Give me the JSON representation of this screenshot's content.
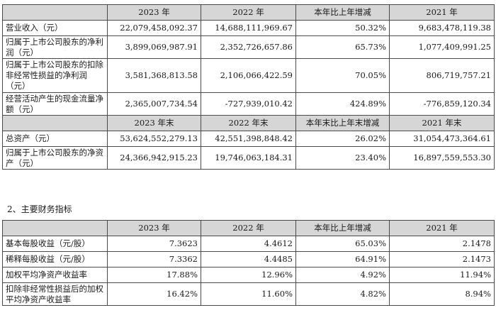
{
  "table1": {
    "header": [
      "",
      "2023 年",
      "2022 年",
      "本年比上年增减",
      "2021 年"
    ],
    "rows": [
      {
        "label": "营业收入（元）",
        "values": [
          "22,079,458,092.37",
          "14,688,111,969.67",
          "50.32%",
          "9,683,478,119.38"
        ]
      },
      {
        "label": "归属于上市公司股东的净利润（元）",
        "values": [
          "3,899,069,987.91",
          "2,352,726,657.86",
          "65.73%",
          "1,077,409,991.25"
        ]
      },
      {
        "label": "归属于上市公司股东的扣除非经常性损益的净利润（元）",
        "values": [
          "3,581,368,813.58",
          "2,106,066,422.59",
          "70.05%",
          "806,719,757.21"
        ]
      },
      {
        "label": "经营活动产生的现金流量净额（元）",
        "values": [
          "2,365,007,734.54",
          "-727,939,010.42",
          "424.89%",
          "-776,859,120.34"
        ]
      }
    ],
    "subheader": [
      "",
      "2023 年末",
      "2022 年末",
      "本年末比上年末增减",
      "2021 年末"
    ],
    "rows2": [
      {
        "label": "总资产（元）",
        "values": [
          "53,624,552,279.13",
          "42,551,398,848.42",
          "26.02%",
          "31,054,473,364.61"
        ]
      },
      {
        "label": "归属于上市公司股东的净资产（元）",
        "values": [
          "24,366,942,915.23",
          "19,746,063,184.31",
          "23.40%",
          "16,897,559,553.30"
        ]
      }
    ]
  },
  "section_heading": "2、主要财务指标",
  "table2": {
    "header": [
      "",
      "2023 年",
      "2022 年",
      "本年比上年增减",
      "2021 年"
    ],
    "rows": [
      {
        "label": "基本每股收益（元/股）",
        "values": [
          "7.3623",
          "4.4612",
          "65.03%",
          "2.1478"
        ]
      },
      {
        "label": "稀释每股收益（元/股）",
        "values": [
          "7.3362",
          "4.4485",
          "64.91%",
          "2.1473"
        ]
      },
      {
        "label": "加权平均净资产收益率",
        "values": [
          "17.88%",
          "12.96%",
          "4.92%",
          "11.94%"
        ]
      },
      {
        "label": "扣除非经常性损益后的加权平均净资产收益率",
        "values": [
          "16.42%",
          "11.60%",
          "4.82%",
          "8.94%"
        ]
      }
    ]
  }
}
